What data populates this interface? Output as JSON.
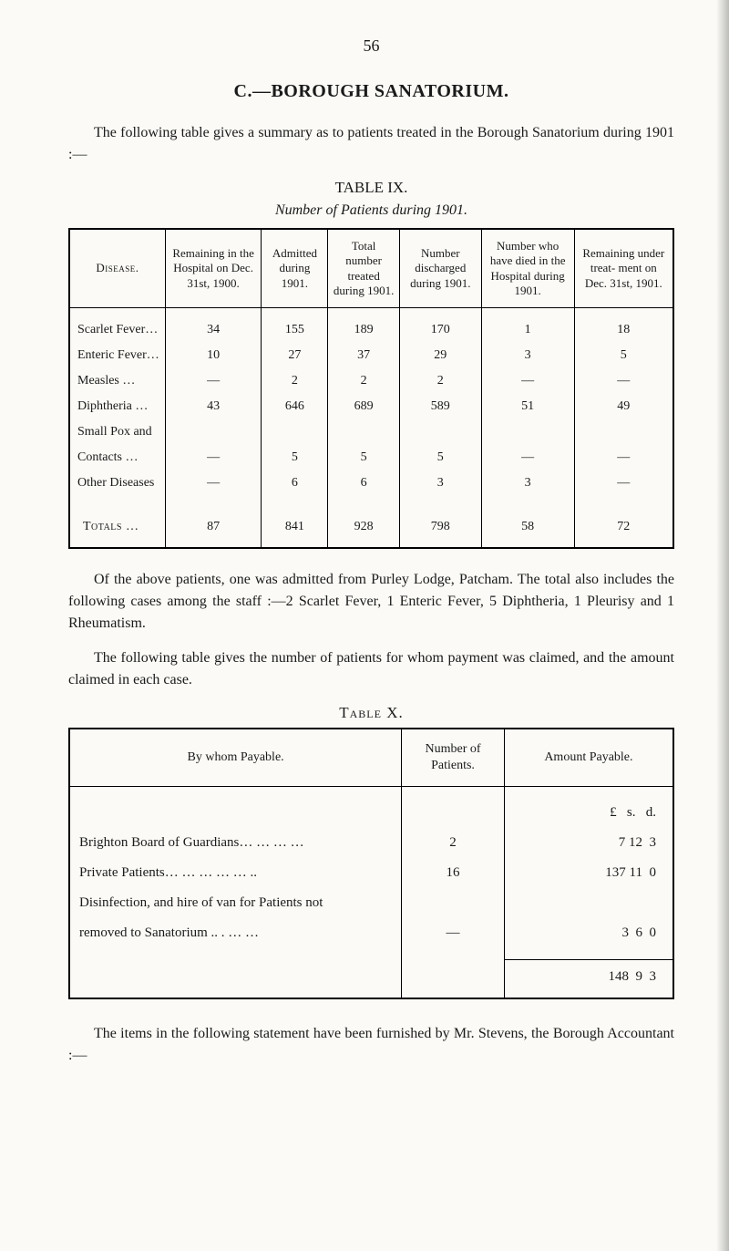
{
  "page_number": "56",
  "section_title": "C.—BOROUGH SANATORIUM.",
  "intro_text": "The following table gives a summary as to patients treated in the Borough Sanatorium during 1901 :—",
  "table9": {
    "caption": "TABLE IX.",
    "subcaption": "Number of Patients during 1901.",
    "columns": [
      "Disease.",
      "Remaining in the Hospital on Dec. 31st, 1900.",
      "Admitted during 1901.",
      "Total number treated during 1901.",
      "Number discharged during 1901.",
      "Number who have died in the Hospital during 1901.",
      "Remaining under treat- ment on Dec. 31st, 1901."
    ],
    "rows": [
      {
        "label": "Scarlet Fever…",
        "c": [
          "34",
          "155",
          "189",
          "170",
          "1",
          "18"
        ]
      },
      {
        "label": "Enteric Fever…",
        "c": [
          "10",
          "27",
          "37",
          "29",
          "3",
          "5"
        ]
      },
      {
        "label": "Measles     …",
        "c": [
          "—",
          "2",
          "2",
          "2",
          "—",
          "—"
        ]
      },
      {
        "label": "Diphtheria  …",
        "c": [
          "43",
          "646",
          "689",
          "589",
          "51",
          "49"
        ]
      },
      {
        "label": "Small Pox and",
        "c": [
          "",
          "",
          "",
          "",
          "",
          ""
        ]
      },
      {
        "label": "  Contacts  …",
        "c": [
          "—",
          "5",
          "5",
          "5",
          "—",
          "—"
        ]
      },
      {
        "label": "Other Diseases",
        "c": [
          "—",
          "6",
          "6",
          "3",
          "3",
          "—"
        ]
      }
    ],
    "totals_label": "Totals  …",
    "totals": [
      "87",
      "841",
      "928",
      "798",
      "58",
      "72"
    ]
  },
  "para_after_t9_1": "Of the above patients, one was admitted from Purley Lodge, Patcham. The total also includes the following cases among the staff :—2 Scarlet Fever, 1 Enteric Fever, 5 Diphtheria, 1 Pleurisy and 1 Rheumatism.",
  "para_after_t9_2": "The following table gives the number of patients for whom payment was claimed, and the amount claimed in each case.",
  "table10": {
    "caption": "Table X.",
    "columns": [
      "By whom Payable.",
      "Number\nof\nPatients.",
      "Amount\nPayable."
    ],
    "currency_header": "£   s.   d.",
    "rows": [
      {
        "label": "Brighton Board of Guardians…    …    …    …",
        "n": "2",
        "amt": "  7 12  3"
      },
      {
        "label": "Private Patients…    …    …    …    …    ..",
        "n": "16",
        "amt": "137 11  0"
      },
      {
        "label": "Disinfection, and hire of van for Patients not",
        "n": "",
        "amt": ""
      },
      {
        "label": "      removed to Sanatorium ..    .    …    …",
        "n": "—",
        "amt": "  3  6  0"
      }
    ],
    "total": "148  9  3"
  },
  "closing_text": "The items in the following statement have been furnished by Mr. Stevens, the Borough Accountant :—"
}
